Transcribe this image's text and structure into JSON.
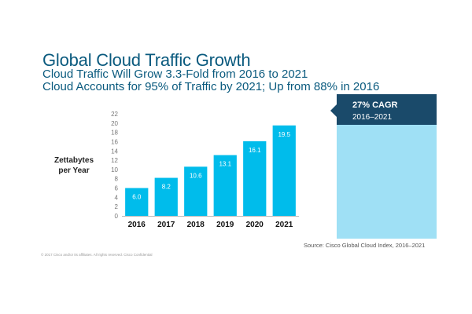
{
  "chart_data": {
    "type": "bar",
    "title": "Global Cloud Traffic Growth",
    "subtitles": [
      "Cloud Traffic Will Grow 3.3-Fold from 2016 to 2021",
      "Cloud Accounts for 95% of Traffic by 2021; Up from 88% in 2016"
    ],
    "ylabel": [
      "Zettabytes",
      "per Year"
    ],
    "xlabel": "",
    "categories": [
      "2016",
      "2017",
      "2018",
      "2019",
      "2020",
      "2021"
    ],
    "values": [
      6.0,
      8.2,
      10.6,
      13.1,
      16.1,
      19.5
    ],
    "data_labels": [
      "6.0",
      "8.2",
      "10.6",
      "13.1",
      "16.1",
      "19.5"
    ],
    "ylim": [
      0,
      22
    ],
    "yticks": [
      0,
      2,
      4,
      6,
      8,
      10,
      12,
      14,
      16,
      18,
      20,
      22
    ],
    "grid": false,
    "bar_color": "#00bceb",
    "label_color": "#ffffff"
  },
  "callout": {
    "value": "27% CAGR",
    "period": "2016–2021",
    "header_color": "#1a4a6a",
    "fill_color": "#9fe0f5"
  },
  "source": "Source: Cisco Global Cloud Index, 2016–2021",
  "footer": "© 2017  Cisco and/or its affiliates. All rights reserved.   Cisco Confidential"
}
